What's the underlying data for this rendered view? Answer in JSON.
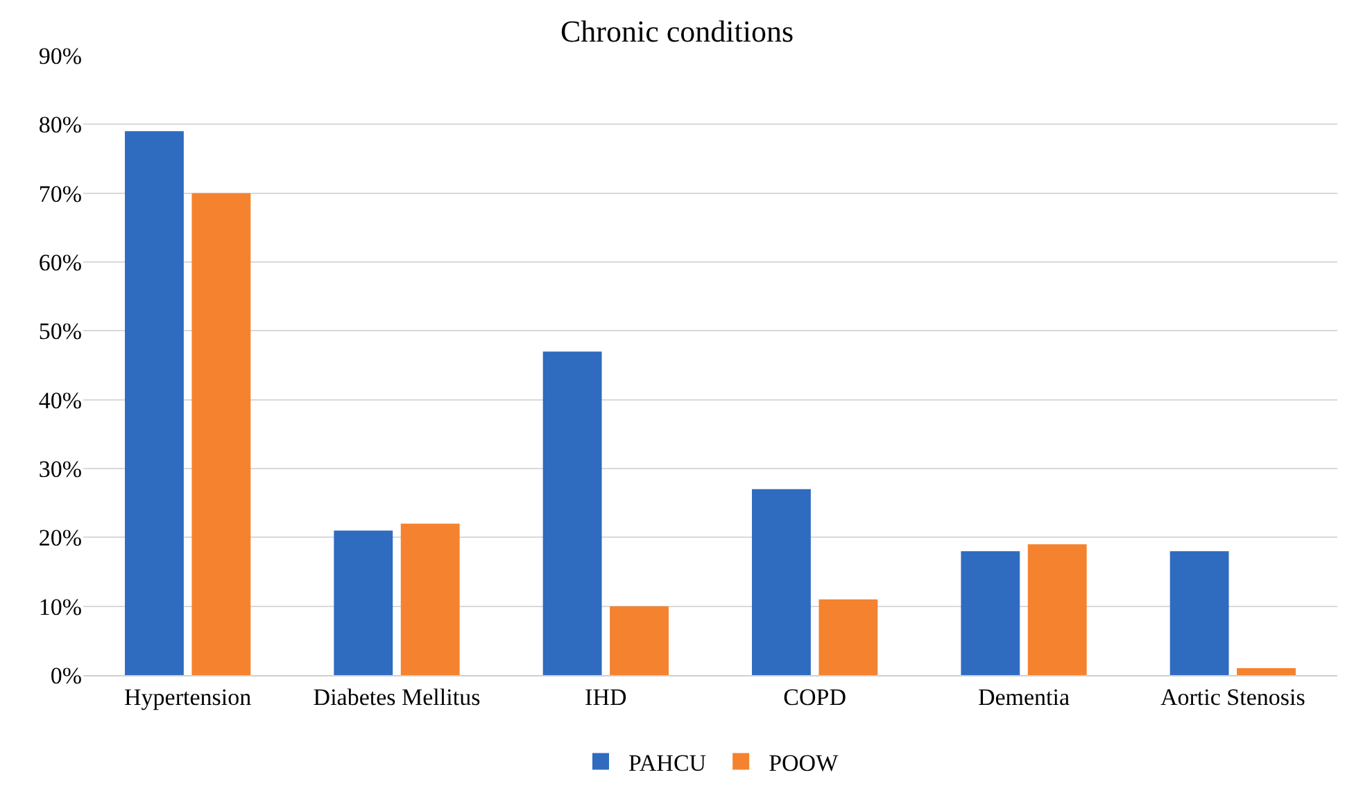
{
  "chart_data": {
    "type": "bar",
    "title": "Chronic conditions",
    "categories": [
      "Hypertension",
      "Diabetes Mellitus",
      "IHD",
      "COPD",
      "Dementia",
      "Aortic Stenosis"
    ],
    "series": [
      {
        "name": "PAHCU",
        "color": "#2f6bbf",
        "values": [
          79,
          21,
          47,
          27,
          18,
          18
        ]
      },
      {
        "name": "POOW",
        "color": "#f5822f",
        "values": [
          70,
          22,
          10,
          11,
          19,
          1
        ]
      }
    ],
    "ylim": [
      0,
      90
    ],
    "yticks": [
      {
        "value": 0,
        "label": "0%"
      },
      {
        "value": 10,
        "label": "10%"
      },
      {
        "value": 20,
        "label": "20%"
      },
      {
        "value": 30,
        "label": "30%"
      },
      {
        "value": 40,
        "label": "40%"
      },
      {
        "value": 50,
        "label": "50%"
      },
      {
        "value": 60,
        "label": "60%"
      },
      {
        "value": 70,
        "label": "70%"
      },
      {
        "value": 80,
        "label": "80%"
      },
      {
        "value": 90,
        "label": "90%"
      }
    ],
    "grid": "y",
    "legend": "bottom"
  }
}
